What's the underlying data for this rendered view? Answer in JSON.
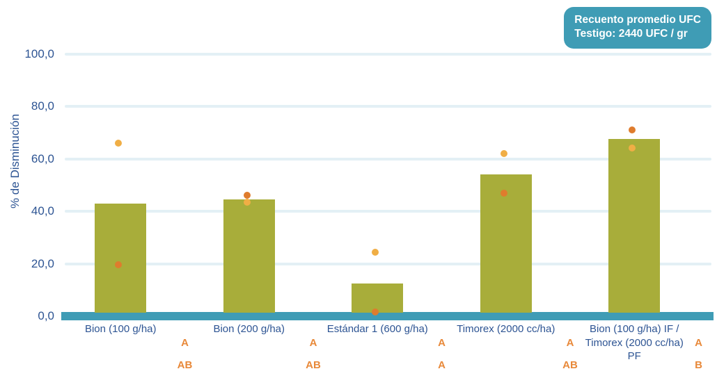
{
  "badge": {
    "line1": "Recuento promedio UFC",
    "line2": "Testigo: 2440 UFC / gr"
  },
  "chart_data": {
    "type": "bar",
    "title": "",
    "xlabel": "",
    "ylabel": "% de Disminución",
    "ylim": [
      0,
      100
    ],
    "yticks": [
      0,
      20,
      40,
      60,
      80,
      100
    ],
    "ytick_labels": [
      "0,0",
      "20,0",
      "40,0",
      "60,0",
      "80,0",
      "100,0"
    ],
    "grid": true,
    "legend": "none",
    "categories": [
      "Bion (100 g/ha)",
      "Bion (200 g/ha)",
      "Estándar 1 (600 g/ha)",
      "Timorex (2000 cc/ha)",
      "Bion (100 g/ha) IF / Timorex (2000 cc/ha) PF"
    ],
    "series": [
      {
        "name": "% de Disminución (barras)",
        "type": "bar",
        "color": "#a8ad3a",
        "values": [
          43,
          44.5,
          12.5,
          54,
          67.5
        ]
      },
      {
        "name": "punto naranja claro",
        "type": "scatter",
        "color": "#f0ae45",
        "values": [
          66,
          43.5,
          24.5,
          62,
          64
        ]
      },
      {
        "name": "punto naranja oscuro",
        "type": "scatter",
        "color": "#df7c2d",
        "values": [
          19.5,
          46,
          1.5,
          47,
          71
        ]
      }
    ],
    "significance_letters": {
      "row1": [
        "A",
        "A",
        "A",
        "A",
        "A"
      ],
      "row2": [
        "AB",
        "AB",
        "A",
        "AB",
        "B"
      ]
    }
  },
  "colors": {
    "bar": "#a8ad3a",
    "dot_light": "#f0ae45",
    "dot_dark": "#df7c2d",
    "teal": "#3f9cb5",
    "axis_text": "#2d5493",
    "gridline": "#e3f0f5",
    "letters": "#e8893a"
  }
}
